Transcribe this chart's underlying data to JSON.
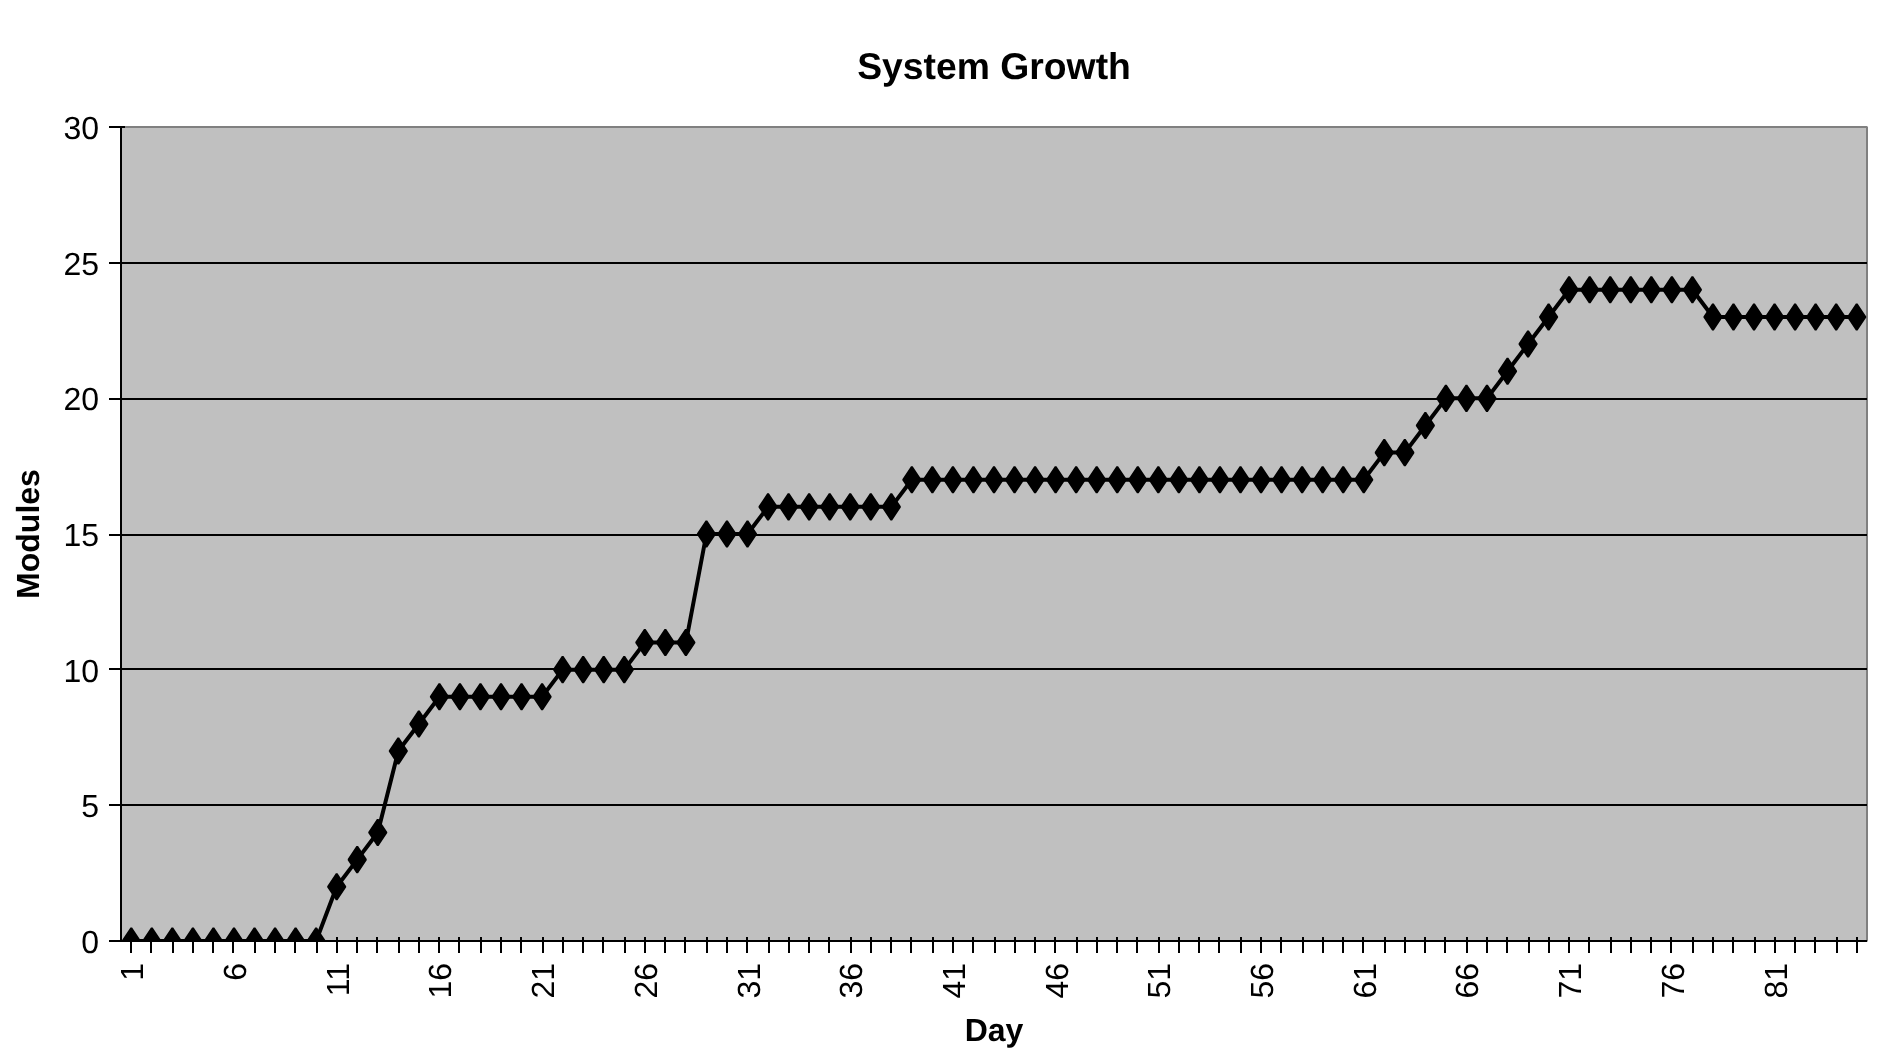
{
  "chart_data": {
    "type": "line",
    "title": "System Growth",
    "xlabel": "Day",
    "ylabel": "Modules",
    "categories": [
      "1",
      null,
      null,
      null,
      null,
      "6",
      null,
      null,
      null,
      null,
      "11",
      null,
      null,
      null,
      null,
      "16",
      null,
      null,
      null,
      null,
      "21",
      null,
      null,
      null,
      null,
      "26",
      null,
      null,
      null,
      null,
      "31",
      null,
      null,
      null,
      null,
      "36",
      null,
      null,
      null,
      null,
      "41",
      null,
      null,
      null,
      null,
      "46",
      null,
      null,
      null,
      null,
      "51",
      null,
      null,
      null,
      null,
      "56",
      null,
      null,
      null,
      null,
      "61",
      null,
      null,
      null,
      null,
      "66",
      null,
      null,
      null,
      null,
      "71",
      null,
      null,
      null,
      null,
      "76",
      null,
      null,
      null,
      null,
      "81",
      null,
      null,
      null,
      null
    ],
    "series": [
      {
        "color": "#000000",
        "values": [
          0,
          0,
          0,
          0,
          0,
          0,
          0,
          0,
          0,
          0,
          2,
          3,
          4,
          7,
          8,
          9,
          9,
          9,
          9,
          9,
          9,
          10,
          10,
          10,
          10,
          11,
          11,
          11,
          15,
          15,
          15,
          16,
          16,
          16,
          16,
          16,
          16,
          16,
          17,
          17,
          17,
          17,
          17,
          17,
          17,
          17,
          17,
          17,
          17,
          17,
          17,
          17,
          17,
          17,
          17,
          17,
          17,
          17,
          17,
          17,
          17,
          18,
          18,
          19,
          20,
          20,
          20,
          21,
          22,
          23,
          24,
          24,
          24,
          24,
          24,
          24,
          24,
          23,
          23,
          23,
          23,
          23,
          23,
          23,
          23
        ]
      }
    ],
    "ylim": [
      0,
      30
    ],
    "yticks": [
      0,
      5,
      10,
      15,
      20,
      25,
      30
    ],
    "grid": "y",
    "marker": "diamond",
    "line_style": "solid"
  }
}
